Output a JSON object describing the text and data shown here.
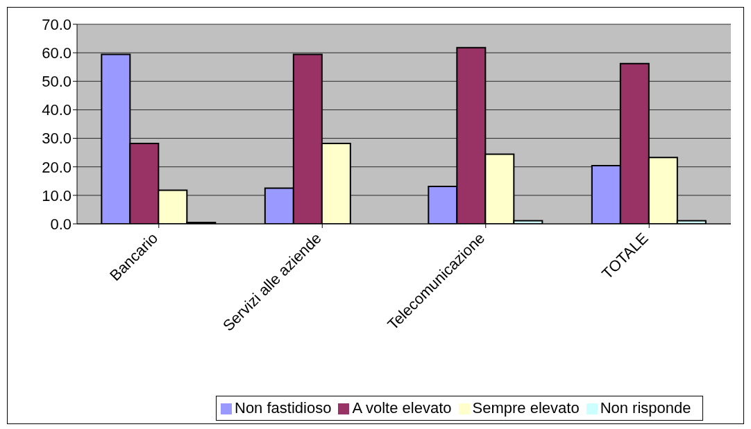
{
  "chart_data": {
    "type": "bar",
    "categories": [
      "Bancario",
      "Servizi alle aziende",
      "Telecomunicazione",
      "TOTALE"
    ],
    "series": [
      {
        "name": "Non fastidioso",
        "color": "#9999ff",
        "values": [
          59.4,
          12.5,
          13.1,
          20.4
        ]
      },
      {
        "name": "A volte elevato",
        "color": "#993366",
        "values": [
          28.2,
          59.4,
          61.8,
          56.2
        ]
      },
      {
        "name": "Sempre elevato",
        "color": "#ffffcc",
        "values": [
          11.8,
          28.2,
          24.4,
          23.3
        ]
      },
      {
        "name": "Non risponde",
        "color": "#ccffff",
        "values": [
          0.5,
          0,
          1.1,
          1.1
        ]
      }
    ],
    "ylim": [
      0,
      70
    ],
    "yticks": [
      {
        "value": 0,
        "label": "0.0"
      },
      {
        "value": 10,
        "label": "10.0"
      },
      {
        "value": 20,
        "label": "20.0"
      },
      {
        "value": 30,
        "label": "30.0"
      },
      {
        "value": 40,
        "label": "40.0"
      },
      {
        "value": 50,
        "label": "50.0"
      },
      {
        "value": 60,
        "label": "60.0"
      },
      {
        "value": 70,
        "label": "70.0"
      }
    ],
    "grid": "y",
    "legend": "bottom"
  }
}
